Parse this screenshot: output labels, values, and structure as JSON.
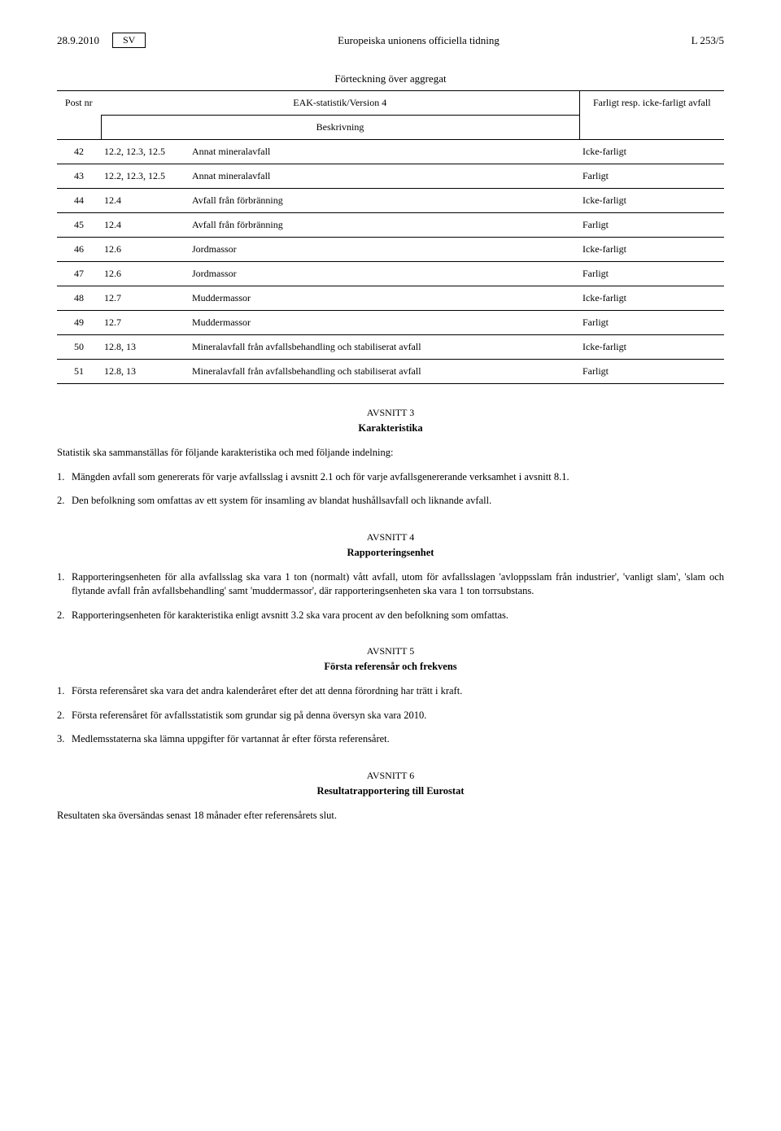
{
  "header": {
    "date": "28.9.2010",
    "lang": "SV",
    "title": "Europeiska unionens officiella tidning",
    "pageref": "L 253/5"
  },
  "table": {
    "caption": "Förteckning över aggregat",
    "subcaption": "EAK-statistik/Version 4",
    "columns": {
      "postnr": "Post nr",
      "desc": "Beskrivning",
      "status": "Farligt resp. icke-farligt avfall"
    },
    "rows": [
      {
        "nr": "42",
        "code": "12.2, 12.3, 12.5",
        "desc": "Annat mineralavfall",
        "status": "Icke-farligt"
      },
      {
        "nr": "43",
        "code": "12.2, 12.3, 12.5",
        "desc": "Annat mineralavfall",
        "status": "Farligt"
      },
      {
        "nr": "44",
        "code": "12.4",
        "desc": "Avfall från förbränning",
        "status": "Icke-farligt"
      },
      {
        "nr": "45",
        "code": "12.4",
        "desc": "Avfall från förbränning",
        "status": "Farligt"
      },
      {
        "nr": "46",
        "code": "12.6",
        "desc": "Jordmassor",
        "status": "Icke-farligt"
      },
      {
        "nr": "47",
        "code": "12.6",
        "desc": "Jordmassor",
        "status": "Farligt"
      },
      {
        "nr": "48",
        "code": "12.7",
        "desc": "Muddermassor",
        "status": "Icke-farligt"
      },
      {
        "nr": "49",
        "code": "12.7",
        "desc": "Muddermassor",
        "status": "Farligt"
      },
      {
        "nr": "50",
        "code": "12.8, 13",
        "desc": "Mineralavfall från avfallsbehandling och stabiliserat av­fall",
        "status": "Icke-farligt"
      },
      {
        "nr": "51",
        "code": "12.8, 13",
        "desc": "Mineralavfall från avfallsbehandling och stabiliserat av­fall",
        "status": "Farligt"
      }
    ]
  },
  "sec3": {
    "heading": "AVSNITT 3",
    "title": "Karakteristika",
    "intro": "Statistik ska sammanställas för följande karakteristika och med följande indelning:",
    "p1n": "1.",
    "p1": "Mängden avfall som genererats för varje avfallsslag i avsnitt 2.1 och för varje avfallsgenererande verksamhet i avsnitt 8.1.",
    "p2n": "2.",
    "p2": "Den befolkning som omfattas av ett system för insamling av blandat hushållsavfall och liknande avfall."
  },
  "sec4": {
    "heading": "AVSNITT 4",
    "title": "Rapporteringsenhet",
    "p1n": "1.",
    "p1": "Rapporteringsenheten för alla avfallsslag ska vara 1 ton (normalt) vått avfall, utom för avfallsslagen 'avloppsslam från industrier', 'vanligt slam', 'slam och flytande avfall från avfallsbehandling' samt 'muddermassor', där rapporterings­enheten ska vara 1 ton torrsubstans.",
    "p2n": "2.",
    "p2": "Rapporteringsenheten för karakteristika enligt avsnitt 3.2 ska vara procent av den befolkning som omfattas."
  },
  "sec5": {
    "heading": "AVSNITT 5",
    "title": "Första referensår och frekvens",
    "p1n": "1.",
    "p1": "Första referensåret ska vara det andra kalenderåret efter det att denna förordning har trätt i kraft.",
    "p2n": "2.",
    "p2": "Första referensåret för avfallsstatistik som grundar sig på denna översyn ska vara 2010.",
    "p3n": "3.",
    "p3": "Medlemsstaterna ska lämna uppgifter för vartannat år efter första referensåret."
  },
  "sec6": {
    "heading": "AVSNITT 6",
    "title": "Resultatrapportering till Eurostat",
    "p1": "Resultaten ska översändas senast 18 månader efter referensårets slut."
  }
}
